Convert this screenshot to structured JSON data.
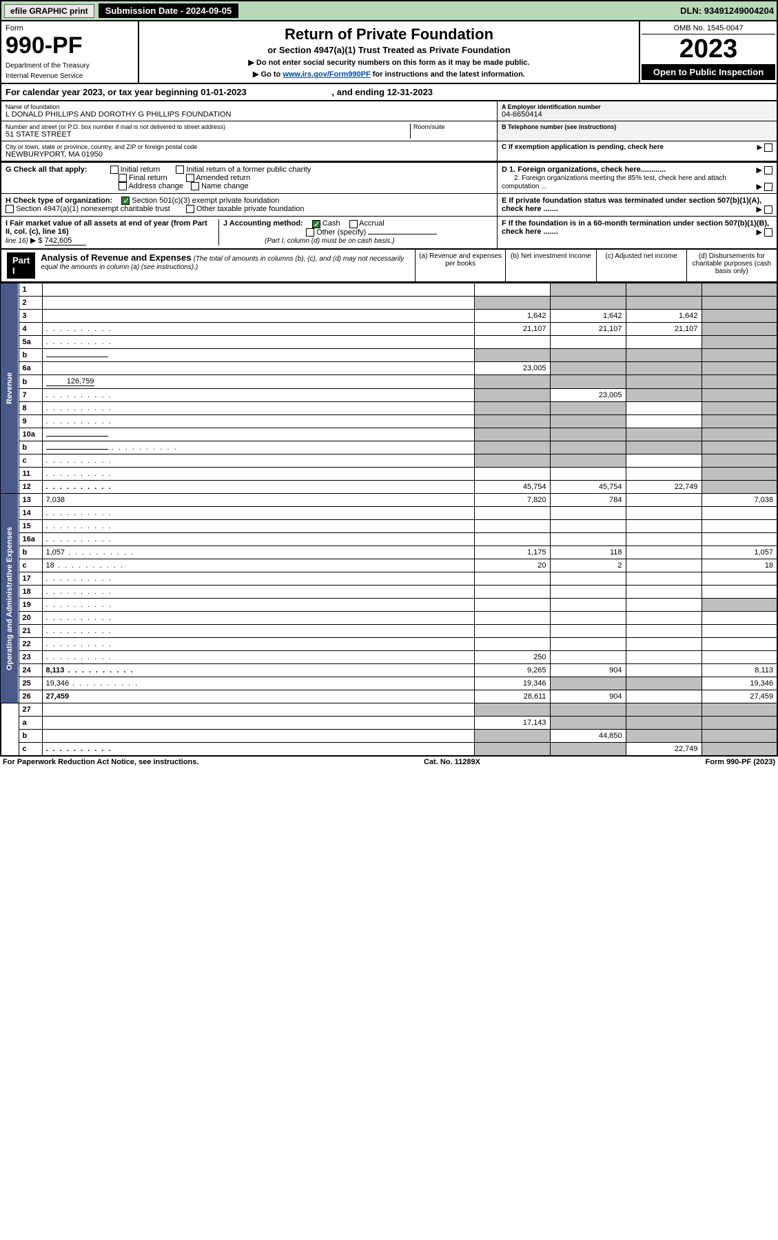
{
  "top_bar": {
    "efile": "efile GRAPHIC print",
    "sub_date": "Submission Date - 2024-09-05",
    "dln": "DLN: 93491249004204"
  },
  "header": {
    "form_label": "Form",
    "form_no": "990-PF",
    "dept": "Department of the Treasury",
    "irs": "Internal Revenue Service",
    "title": "Return of Private Foundation",
    "subtitle": "or Section 4947(a)(1) Trust Treated as Private Foundation",
    "note1": "▶ Do not enter social security numbers on this form as it may be made public.",
    "note2_pre": "▶ Go to ",
    "note2_link": "www.irs.gov/Form990PF",
    "note2_post": " for instructions and the latest information.",
    "omb": "OMB No. 1545-0047",
    "year": "2023",
    "open": "Open to Public Inspection"
  },
  "cal_year": {
    "prefix": "For calendar year 2023, or tax year beginning ",
    "begin": "01-01-2023",
    "mid": ", and ending ",
    "end": "12-31-2023"
  },
  "info": {
    "name_lbl": "Name of foundation",
    "name": "L DONALD PHILLIPS AND DOROTHY G PHILLIPS FOUNDATION",
    "street_lbl": "Number and street (or P.O. box number if mail is not delivered to street address)",
    "street": "51 STATE STREET",
    "room_lbl": "Room/suite",
    "city_lbl": "City or town, state or province, country, and ZIP or foreign postal code",
    "city": "NEWBURYPORT, MA  01950",
    "ein_lbl": "A Employer identification number",
    "ein": "04-6650414",
    "tel_lbl": "B Telephone number (see instructions)",
    "c": "C If exemption application is pending, check here"
  },
  "g": {
    "label": "G Check all that apply:",
    "opts": [
      "Initial return",
      "Initial return of a former public charity",
      "Final return",
      "Amended return",
      "Address change",
      "Name change"
    ]
  },
  "h": {
    "label": "H Check type of organization:",
    "opt1": "Section 501(c)(3) exempt private foundation",
    "opt2": "Section 4947(a)(1) nonexempt charitable trust",
    "opt3": "Other taxable private foundation"
  },
  "i": {
    "label": "I Fair market value of all assets at end of year (from Part II, col. (c), line 16)",
    "arrow": "▶ $",
    "value": "742,605"
  },
  "j": {
    "label": "J Accounting method:",
    "cash": "Cash",
    "accrual": "Accrual",
    "other": "Other (specify)",
    "note": "(Part I, column (d) must be on cash basis.)"
  },
  "d": {
    "d1": "D 1. Foreign organizations, check here............",
    "d2": "2. Foreign organizations meeting the 85% test, check here and attach computation ...",
    "e": "E  If private foundation status was terminated under section 507(b)(1)(A), check here .......",
    "f": "F  If the foundation is in a 60-month termination under section 507(b)(1)(B), check here ......."
  },
  "part1": {
    "tag": "Part I",
    "title": "Analysis of Revenue and Expenses",
    "title_note": "(The total of amounts in columns (b), (c), and (d) may not necessarily equal the amounts in column (a) (see instructions).)",
    "col_a": "(a)  Revenue and expenses per books",
    "col_b": "(b)  Net investment income",
    "col_c": "(c)  Adjusted net income",
    "col_d": "(d)  Disbursements for charitable purposes (cash basis only)"
  },
  "side": {
    "revenue": "Revenue",
    "expenses": "Operating and Administrative Expenses"
  },
  "rows": [
    {
      "n": "1",
      "d": "",
      "a": "",
      "b": "",
      "c": "",
      "sa": false,
      "sb": true,
      "sc": true,
      "sd": true
    },
    {
      "n": "2",
      "d": "",
      "a": "",
      "b": "",
      "c": "",
      "sa": true,
      "sb": true,
      "sc": true,
      "sd": true,
      "dotsAfter": true,
      "bold": false
    },
    {
      "n": "3",
      "d": "",
      "a": "1,642",
      "b": "1,642",
      "c": "1,642",
      "sd": true
    },
    {
      "n": "4",
      "d": "",
      "a": "21,107",
      "b": "21,107",
      "c": "21,107",
      "sd": true,
      "dots": true
    },
    {
      "n": "5a",
      "d": "",
      "a": "",
      "b": "",
      "c": "",
      "sd": true,
      "dots": true
    },
    {
      "n": "b",
      "d": "",
      "a": "",
      "b": "",
      "c": "",
      "sa": true,
      "sb": true,
      "sc": true,
      "sd": true,
      "inline": true
    },
    {
      "n": "6a",
      "d": "",
      "a": "23,005",
      "b": "",
      "c": "",
      "sb": true,
      "sc": true,
      "sd": true
    },
    {
      "n": "b",
      "d": "",
      "a": "",
      "b": "",
      "c": "",
      "sa": true,
      "sb": true,
      "sc": true,
      "sd": true,
      "extra": "126,759"
    },
    {
      "n": "7",
      "d": "",
      "a": "",
      "b": "23,005",
      "c": "",
      "sa": true,
      "sc": true,
      "sd": true,
      "dots": true
    },
    {
      "n": "8",
      "d": "",
      "a": "",
      "b": "",
      "c": "",
      "sa": true,
      "sb": true,
      "sd": true,
      "dots": true
    },
    {
      "n": "9",
      "d": "",
      "a": "",
      "b": "",
      "c": "",
      "sa": true,
      "sb": true,
      "sd": true,
      "dots": true
    },
    {
      "n": "10a",
      "d": "",
      "a": "",
      "b": "",
      "c": "",
      "sa": true,
      "sb": true,
      "sc": true,
      "sd": true,
      "inline": true
    },
    {
      "n": "b",
      "d": "",
      "a": "",
      "b": "",
      "c": "",
      "sa": true,
      "sb": true,
      "sc": true,
      "sd": true,
      "dots": true,
      "inline": true
    },
    {
      "n": "c",
      "d": "",
      "a": "",
      "b": "",
      "c": "",
      "sa": true,
      "sb": true,
      "sd": true,
      "dots": true
    },
    {
      "n": "11",
      "d": "",
      "a": "",
      "b": "",
      "c": "",
      "sd": true,
      "dots": true
    },
    {
      "n": "12",
      "d": "",
      "a": "45,754",
      "b": "45,754",
      "c": "22,749",
      "sd": true,
      "bold": true,
      "dots": true
    }
  ],
  "rows2": [
    {
      "n": "13",
      "d": "7,038",
      "a": "7,820",
      "b": "784",
      "c": ""
    },
    {
      "n": "14",
      "d": "",
      "a": "",
      "b": "",
      "c": "",
      "dots": true
    },
    {
      "n": "15",
      "d": "",
      "a": "",
      "b": "",
      "c": "",
      "dots": true
    },
    {
      "n": "16a",
      "d": "",
      "a": "",
      "b": "",
      "c": "",
      "dots": true
    },
    {
      "n": "b",
      "d": "1,057",
      "a": "1,175",
      "b": "118",
      "c": "",
      "dots": true
    },
    {
      "n": "c",
      "d": "18",
      "a": "20",
      "b": "2",
      "c": "",
      "dots": true
    },
    {
      "n": "17",
      "d": "",
      "a": "",
      "b": "",
      "c": "",
      "dots": true
    },
    {
      "n": "18",
      "d": "",
      "a": "",
      "b": "",
      "c": "",
      "dots": true
    },
    {
      "n": "19",
      "d": "",
      "a": "",
      "b": "",
      "c": "",
      "sd": true,
      "dots": true
    },
    {
      "n": "20",
      "d": "",
      "a": "",
      "b": "",
      "c": "",
      "dots": true
    },
    {
      "n": "21",
      "d": "",
      "a": "",
      "b": "",
      "c": "",
      "dots": true
    },
    {
      "n": "22",
      "d": "",
      "a": "",
      "b": "",
      "c": "",
      "dots": true
    },
    {
      "n": "23",
      "d": "",
      "a": "250",
      "b": "",
      "c": "",
      "dots": true
    },
    {
      "n": "24",
      "d": "8,113",
      "a": "9,265",
      "b": "904",
      "c": "",
      "bold": true,
      "dots": true
    },
    {
      "n": "25",
      "d": "19,346",
      "a": "19,346",
      "b": "",
      "c": "",
      "sb": true,
      "sc": true,
      "dots": true
    },
    {
      "n": "26",
      "d": "27,459",
      "a": "28,611",
      "b": "904",
      "c": "",
      "bold": true
    }
  ],
  "rows3": [
    {
      "n": "27",
      "d": "",
      "a": "",
      "b": "",
      "c": "",
      "sa": true,
      "sb": true,
      "sc": true,
      "sd": true
    },
    {
      "n": "a",
      "d": "",
      "a": "17,143",
      "b": "",
      "c": "",
      "sb": true,
      "sc": true,
      "sd": true,
      "bold": true
    },
    {
      "n": "b",
      "d": "",
      "a": "",
      "b": "44,850",
      "c": "",
      "sa": true,
      "sc": true,
      "sd": true,
      "bold": true
    },
    {
      "n": "c",
      "d": "",
      "a": "",
      "b": "",
      "c": "22,749",
      "sa": true,
      "sb": true,
      "sd": true,
      "bold": true,
      "dots": true
    }
  ],
  "footer": {
    "left": "For Paperwork Reduction Act Notice, see instructions.",
    "mid": "Cat. No. 11289X",
    "right": "Form 990-PF (2023)"
  },
  "colors": {
    "topbar_bg": "#b8d9b8",
    "side_bg": "#4a5a8a",
    "shade": "#bfbfbf",
    "check": "#2e7d32",
    "link": "#0048a0"
  }
}
